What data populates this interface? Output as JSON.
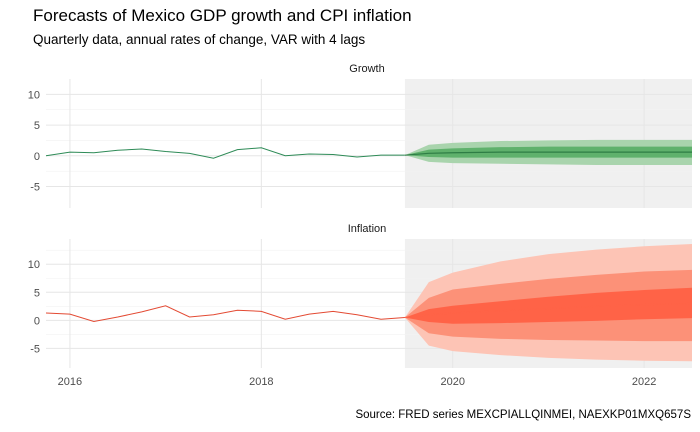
{
  "title": "Forecasts of Mexico GDP growth and CPI inflation",
  "subtitle": "Quarterly data, annual rates of change, VAR with 4 lags",
  "caption": "Source: FRED series MEXCPIALLQINMEI, NAEXKP01MXQ657S",
  "chart_data": {
    "type": "line",
    "x_ticks": [
      2016,
      2018,
      2020,
      2022
    ],
    "xlim": [
      2015.75,
      2022.5
    ],
    "forecast_start": 2019.5,
    "grid": true,
    "colors": {
      "growth_line": "#2e8b57",
      "growth_bands": [
        "#a9d4ad",
        "#5fb16c",
        "#2e7d45"
      ],
      "inflation_line": "#e34a33",
      "inflation_bands": [
        "#fdc4b5",
        "#fc9178",
        "#ff6347"
      ],
      "forecast_background": "#f0f0f0"
    },
    "panels": [
      {
        "name": "Growth",
        "ylim": [
          -8.5,
          12.5
        ],
        "y_ticks": [
          10,
          5,
          0,
          -5
        ],
        "history": {
          "x": [
            2015.75,
            2016.0,
            2016.25,
            2016.5,
            2016.75,
            2017.0,
            2017.25,
            2017.5,
            2017.75,
            2018.0,
            2018.25,
            2018.5,
            2018.75,
            2019.0,
            2019.25,
            2019.5
          ],
          "y": [
            0.0,
            0.6,
            0.5,
            0.9,
            1.1,
            0.7,
            0.4,
            -0.4,
            1.0,
            1.3,
            0.0,
            0.3,
            0.2,
            -0.2,
            0.1,
            0.1
          ]
        },
        "forecast": {
          "x": [
            2019.5,
            2019.75,
            2020.0,
            2020.5,
            2021.0,
            2021.5,
            2022.0,
            2022.5
          ],
          "median": [
            0.1,
            0.4,
            0.5,
            0.6,
            0.6,
            0.6,
            0.6,
            0.6
          ],
          "band_80": [
            [
              0.1,
              0.1
            ],
            [
              -0.2,
              1.0
            ],
            [
              -0.3,
              1.2
            ],
            [
              -0.3,
              1.4
            ],
            [
              -0.3,
              1.5
            ],
            [
              -0.3,
              1.5
            ],
            [
              -0.3,
              1.5
            ],
            [
              -0.3,
              1.5
            ]
          ],
          "band_95": [
            [
              0.1,
              0.1
            ],
            [
              -1.0,
              1.8
            ],
            [
              -1.2,
              2.1
            ],
            [
              -1.3,
              2.4
            ],
            [
              -1.4,
              2.5
            ],
            [
              -1.5,
              2.6
            ],
            [
              -1.5,
              2.6
            ],
            [
              -1.5,
              2.6
            ]
          ]
        }
      },
      {
        "name": "Inflation",
        "ylim": [
          -8.5,
          14.5
        ],
        "y_ticks": [
          10,
          5,
          0,
          -5
        ],
        "history": {
          "x": [
            2015.75,
            2016.0,
            2016.25,
            2016.5,
            2016.75,
            2017.0,
            2017.25,
            2017.5,
            2017.75,
            2018.0,
            2018.25,
            2018.5,
            2018.75,
            2019.0,
            2019.25,
            2019.5
          ],
          "y": [
            1.3,
            1.1,
            -0.2,
            0.6,
            1.5,
            2.6,
            0.6,
            1.0,
            1.8,
            1.6,
            0.2,
            1.1,
            1.6,
            1.0,
            0.2,
            0.5
          ]
        },
        "forecast": {
          "x": [
            2019.5,
            2019.75,
            2020.0,
            2020.5,
            2021.0,
            2021.5,
            2022.0,
            2022.5
          ],
          "median": [
            0.5,
            1.0,
            1.3,
            1.7,
            2.1,
            2.5,
            2.8,
            3.0
          ],
          "band_50": [
            [
              0.5,
              0.5
            ],
            [
              -0.3,
              2.0
            ],
            [
              -0.6,
              2.6
            ],
            [
              -0.5,
              3.4
            ],
            [
              -0.3,
              4.2
            ],
            [
              -0.1,
              4.9
            ],
            [
              0.2,
              5.4
            ],
            [
              0.4,
              5.8
            ]
          ],
          "band_80": [
            [
              0.5,
              0.5
            ],
            [
              -2.3,
              4.0
            ],
            [
              -2.9,
              5.5
            ],
            [
              -3.3,
              6.5
            ],
            [
              -3.5,
              7.4
            ],
            [
              -3.6,
              8.1
            ],
            [
              -3.7,
              8.7
            ],
            [
              -3.7,
              9.0
            ]
          ],
          "band_95": [
            [
              0.5,
              0.5
            ],
            [
              -4.5,
              6.8
            ],
            [
              -5.5,
              8.5
            ],
            [
              -6.2,
              10.5
            ],
            [
              -6.7,
              11.8
            ],
            [
              -7.0,
              12.6
            ],
            [
              -7.2,
              13.2
            ],
            [
              -7.3,
              13.6
            ]
          ]
        }
      }
    ]
  }
}
